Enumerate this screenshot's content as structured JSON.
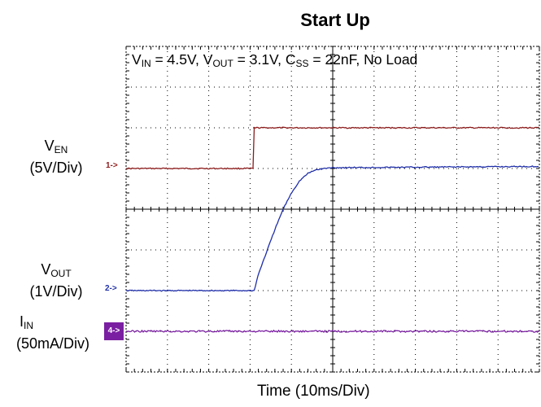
{
  "chart_data": {
    "type": "line",
    "title": "Start Up",
    "conditions": {
      "vin_sym": "V",
      "vin_sub": "IN",
      "vin_val": " = 4.5V, ",
      "vout_sym": "V",
      "vout_sub": "OUT",
      "vout_val": " = 3.1V, ",
      "css_sym": "C",
      "css_sub": "SS",
      "css_val": " = 22nF, No Load"
    },
    "xlabel": "Time (10ms/Div)",
    "divisions": {
      "x": 10,
      "y": 8
    },
    "grid": true,
    "channels": [
      {
        "id": "1",
        "marker": "1->",
        "name_sym": "V",
        "name_sub": "EN",
        "scale": "(5V/Div)",
        "color": "#8b1a1a",
        "ground_div": 5.0,
        "x_div": [
          0,
          3.1,
          3.1,
          10
        ],
        "y_div": [
          0,
          0,
          1,
          1
        ]
      },
      {
        "id": "2",
        "marker": "2->",
        "name_sym": "V",
        "name_sub": "OUT",
        "scale": "(1V/Div)",
        "color": "#1f2fa8",
        "ground_div": 2.0,
        "x_div": [
          0,
          3.1,
          3.2,
          3.4,
          3.6,
          3.8,
          4.0,
          4.2,
          4.4,
          4.6,
          4.8,
          5.0,
          10
        ],
        "y_div": [
          0,
          0,
          0.4,
          0.95,
          1.5,
          2.0,
          2.4,
          2.7,
          2.88,
          2.97,
          3.0,
          3.02,
          3.05
        ]
      },
      {
        "id": "4",
        "marker": "4->",
        "name_sym": "I",
        "name_sub": "IN",
        "scale": "(50mA/Div)",
        "color": "#7b1fa2",
        "ground_div": 1.0,
        "x_div": [
          0,
          10
        ],
        "y_div": [
          0,
          0
        ]
      }
    ]
  }
}
